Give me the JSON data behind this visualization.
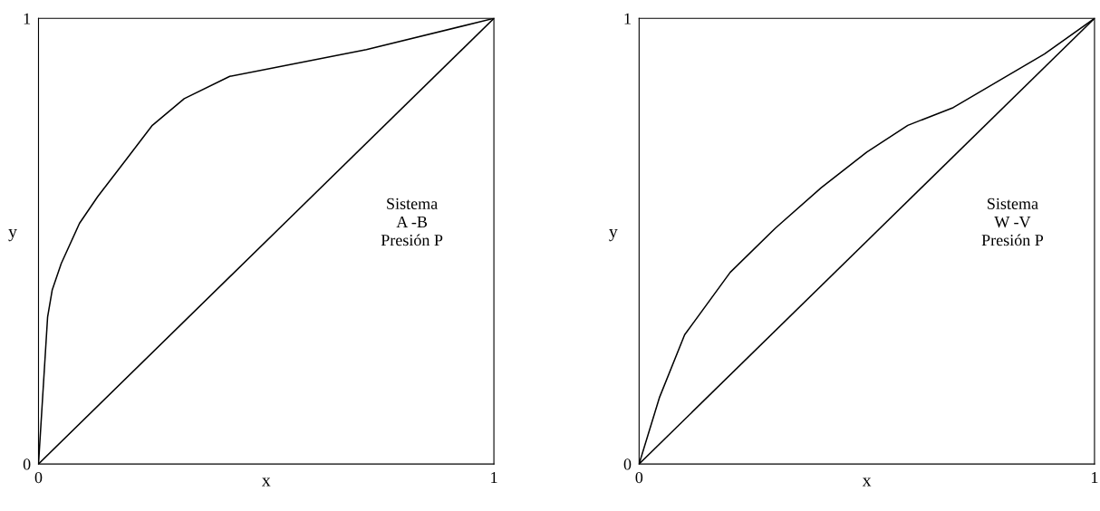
{
  "chart_data": [
    {
      "type": "line",
      "xlabel": "x",
      "ylabel": "y",
      "xlim": [
        0,
        1
      ],
      "ylim": [
        0,
        1
      ],
      "xticks": [
        0,
        1
      ],
      "yticks": [
        0,
        1
      ],
      "marker": "none",
      "line_style": "solid",
      "series": [
        {
          "color": "#000000",
          "x": [
            0,
            0.02,
            0.03,
            0.05,
            0.09,
            0.13,
            0.19,
            0.25,
            0.32,
            0.42,
            0.52,
            0.72,
            1
          ],
          "values": [
            0,
            0.33,
            0.39,
            0.45,
            0.54,
            0.6,
            0.68,
            0.76,
            0.82,
            0.87,
            0.89,
            0.93,
            1
          ]
        },
        {
          "color": "#000000",
          "x": [
            0,
            1
          ],
          "values": [
            0,
            1
          ]
        }
      ],
      "annotations": [
        "Sistema\nA -B\nPresión P"
      ]
    },
    {
      "type": "line",
      "xlabel": "x",
      "ylabel": "y",
      "xlim": [
        0,
        1
      ],
      "ylim": [
        0,
        1
      ],
      "xticks": [
        0,
        1
      ],
      "yticks": [
        0,
        1
      ],
      "marker": "none",
      "line_style": "solid",
      "series": [
        {
          "color": "#000000",
          "x": [
            0,
            0.045,
            0.1,
            0.2,
            0.3,
            0.4,
            0.5,
            0.59,
            0.69,
            0.79,
            0.89,
            1
          ],
          "values": [
            0,
            0.15,
            0.29,
            0.43,
            0.53,
            0.62,
            0.7,
            0.76,
            0.8,
            0.86,
            0.92,
            1
          ]
        },
        {
          "color": "#000000",
          "x": [
            0,
            1
          ],
          "values": [
            0,
            1
          ]
        }
      ],
      "annotations": [
        "Sistema\nW -V\nPresión P"
      ]
    }
  ]
}
